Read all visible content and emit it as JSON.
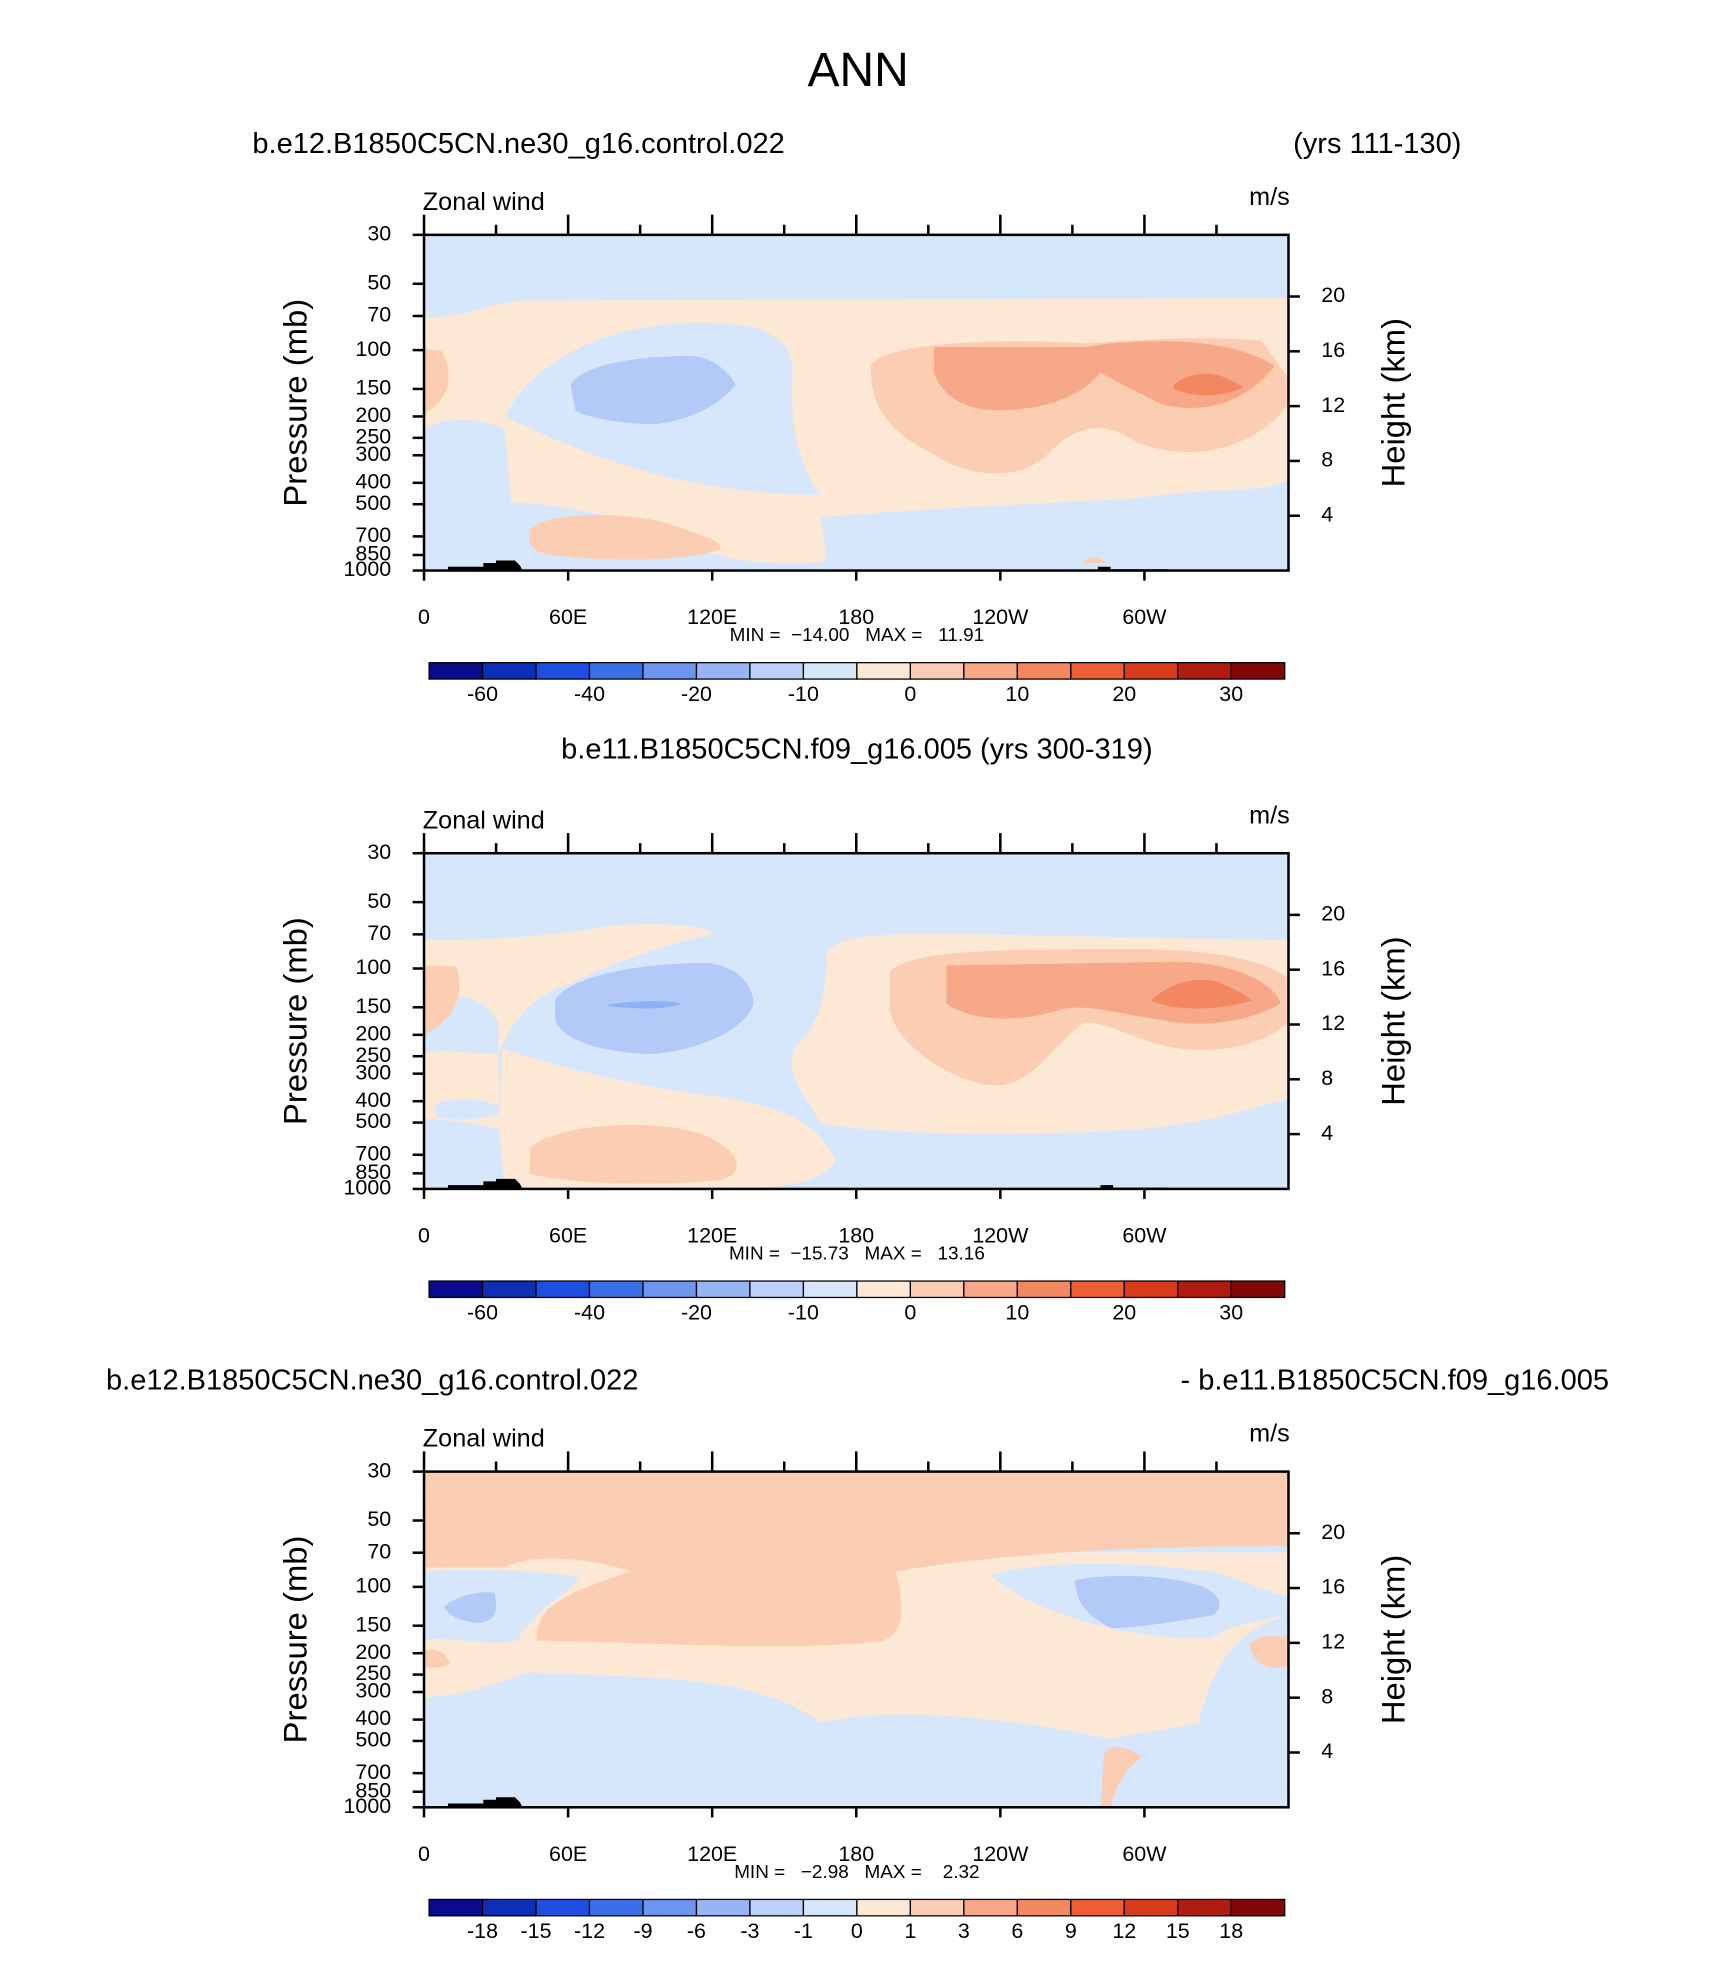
{
  "title": "ANN",
  "chart_data": [
    {
      "type": "contour",
      "title_left": "b.e12.B1850C5CN.ne30_g16.control.022",
      "title_right": "(yrs 111-130)",
      "variable": "Zonal wind",
      "units": "m/s",
      "xlim": [
        0,
        360
      ],
      "xticks": [
        0,
        {
          "value": 60,
          "label": "60E"
        },
        {
          "value": 120,
          "label": "120E"
        },
        180,
        {
          "value": 240,
          "label": "120W"
        },
        {
          "value": 300,
          "label": "60W"
        }
      ],
      "ylabel": "Pressure (mb)",
      "ylim": [
        1000,
        30
      ],
      "log_y": true,
      "yticks": [
        30,
        50,
        70,
        100,
        150,
        200,
        250,
        300,
        400,
        500,
        700,
        850,
        1000
      ],
      "y2label": "Height (km)",
      "y2lim": [
        0,
        24.5
      ],
      "y2ticks": [
        4,
        8,
        12,
        16,
        20
      ],
      "stats": "MIN =  −14.00   MAX =   11.91",
      "colorbar": {
        "colors": [
          "#0a0a8c",
          "#0d2fb5",
          "#1e4fe0",
          "#3a6fe8",
          "#6b95ef",
          "#97b5f5",
          "#bcd0fa",
          "#d6e7fb",
          "#fde8d6",
          "#fbcdb2",
          "#f7a888",
          "#f28760",
          "#ee5d36",
          "#d83a1c",
          "#b01c0f",
          "#820808"
        ],
        "ticks": [
          -60,
          -40,
          -20,
          -10,
          0,
          10,
          20,
          30
        ]
      }
    },
    {
      "type": "contour",
      "title": "b.e11.B1850C5CN.f09_g16.005 (yrs 300-319)",
      "variable": "Zonal wind",
      "units": "m/s",
      "xlim": [
        0,
        360
      ],
      "xticks": [
        0,
        {
          "value": 60,
          "label": "60E"
        },
        {
          "value": 120,
          "label": "120E"
        },
        180,
        {
          "value": 240,
          "label": "120W"
        },
        {
          "value": 300,
          "label": "60W"
        }
      ],
      "ylabel": "Pressure (mb)",
      "ylim": [
        1000,
        30
      ],
      "log_y": true,
      "yticks": [
        30,
        50,
        70,
        100,
        150,
        200,
        250,
        300,
        400,
        500,
        700,
        850,
        1000
      ],
      "y2label": "Height (km)",
      "y2lim": [
        0,
        24.5
      ],
      "y2ticks": [
        4,
        8,
        12,
        16,
        20
      ],
      "stats": "MIN =  −15.73   MAX =   13.16",
      "colorbar": {
        "colors": [
          "#0a0a8c",
          "#0d2fb5",
          "#1e4fe0",
          "#3a6fe8",
          "#6b95ef",
          "#97b5f5",
          "#bcd0fa",
          "#d6e7fb",
          "#fde8d6",
          "#fbcdb2",
          "#f7a888",
          "#f28760",
          "#ee5d36",
          "#d83a1c",
          "#b01c0f",
          "#820808"
        ],
        "ticks": [
          -60,
          -40,
          -20,
          -10,
          0,
          10,
          20,
          30
        ]
      }
    },
    {
      "type": "contour",
      "title_left": "b.e12.B1850C5CN.ne30_g16.control.022",
      "title_right": "- b.e11.B1850C5CN.f09_g16.005",
      "variable": "Zonal wind",
      "units": "m/s",
      "xlim": [
        0,
        360
      ],
      "xticks": [
        0,
        {
          "value": 60,
          "label": "60E"
        },
        {
          "value": 120,
          "label": "120E"
        },
        180,
        {
          "value": 240,
          "label": "120W"
        },
        {
          "value": 300,
          "label": "60W"
        }
      ],
      "ylabel": "Pressure (mb)",
      "ylim": [
        1000,
        30
      ],
      "log_y": true,
      "yticks": [
        30,
        50,
        70,
        100,
        150,
        200,
        250,
        300,
        400,
        500,
        700,
        850,
        1000
      ],
      "y2label": "Height (km)",
      "y2lim": [
        0,
        24.5
      ],
      "y2ticks": [
        4,
        8,
        12,
        16,
        20
      ],
      "stats": "MIN =   −2.98   MAX =    2.32",
      "colorbar": {
        "colors": [
          "#0a0a8c",
          "#0d2fb5",
          "#1e4fe0",
          "#3a6fe8",
          "#6b95ef",
          "#97b5f5",
          "#bcd0fa",
          "#d6e7fb",
          "#fde8d6",
          "#fbcdb2",
          "#f7a888",
          "#f28760",
          "#ee5d36",
          "#d83a1c",
          "#b01c0f",
          "#820808"
        ],
        "ticks": [
          -18,
          -15,
          -12,
          -9,
          -6,
          -3,
          -1,
          0,
          1,
          3,
          6,
          9,
          12,
          15,
          18
        ]
      }
    }
  ]
}
